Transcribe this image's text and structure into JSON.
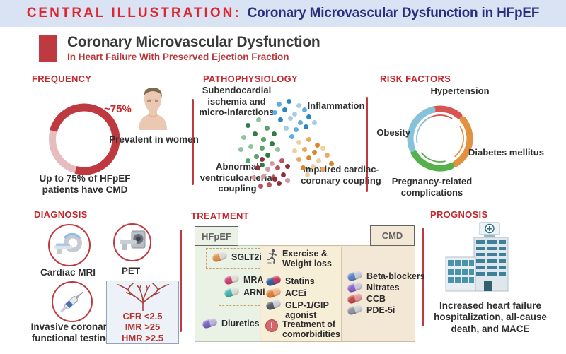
{
  "header": {
    "prefix": "CENTRAL ILLUSTRATION:",
    "title": "Coronary Microvascular Dysfunction in HFpEF"
  },
  "title_block": {
    "title": "Coronary Microvascular Dysfunction",
    "subtitle": "In Heart Failure With Preserved Ejection Fraction",
    "accent_color": "#bf3a40"
  },
  "frequency": {
    "heading": "FREQUENCY",
    "donut": {
      "value_percent": 75,
      "label": "~75%",
      "filled_color": "#bf3a40",
      "empty_color": "#e6bcbf"
    },
    "caption": "Up to 75% of HFpEF patients have CMD",
    "person_caption": "Prevalent in women"
  },
  "pathophysiology": {
    "heading": "PATHOPHYSIOLOGY",
    "clusters": [
      {
        "label": "Subendocardial ischemia and micro-infarctions",
        "shades": [
          "#2f7d43",
          "#58a46a",
          "#8fc49c"
        ]
      },
      {
        "label": "Inflammation",
        "shades": [
          "#2e86c1",
          "#5dade2",
          "#a9cce3"
        ]
      },
      {
        "label": "Impaired cardiac-coronary coupling",
        "shades": [
          "#d6882f",
          "#e8ab60",
          "#f0cfa0"
        ]
      },
      {
        "label": "Abnormal ventriculoarterial coupling",
        "shades": [
          "#8e2f3c",
          "#b85560",
          "#d49aa0"
        ]
      }
    ]
  },
  "risk_factors": {
    "heading": "RISK FACTORS",
    "items": [
      {
        "label": "Hypertension",
        "color": "#d95350"
      },
      {
        "label": "Diabetes mellitus",
        "color": "#e2913f"
      },
      {
        "label": "Pregnancy-related complications",
        "color": "#56b04c"
      },
      {
        "label": "Obesity",
        "color": "#85c3da"
      }
    ]
  },
  "diagnosis": {
    "heading": "DIAGNOSIS",
    "modalities": [
      {
        "label": "Cardiac MRI"
      },
      {
        "label": "PET"
      },
      {
        "label": "Invasive coronary functional testing"
      }
    ],
    "thresholds": [
      "CFR <2.5",
      "IMR >25",
      "HMR >2.5"
    ]
  },
  "treatment": {
    "heading": "TREATMENT",
    "hfpef_tab": "HFpEF",
    "cmd_tab": "CMD",
    "hfpef_items": [
      {
        "label": "SGLT2i",
        "icon": "capsule",
        "colors": [
          "#e0924e",
          "#dcd8d2"
        ]
      },
      {
        "label": "MRA",
        "icon": "capsule",
        "colors": [
          "#cf4472",
          "#dedad4"
        ]
      },
      {
        "label": "ARNi",
        "icon": "capsule",
        "colors": [
          "#45b8ad",
          "#dedad4"
        ]
      },
      {
        "label": "Diuretics",
        "icon": "capsule",
        "colors": [
          "#7a6bc0",
          "#bcb1e0"
        ]
      }
    ],
    "shared_items": [
      {
        "label": "Exercise & Weight loss",
        "icon": "runner"
      },
      {
        "label": "Statins",
        "icon": "capsule",
        "colors": [
          "#31609e",
          "#c23a62"
        ]
      },
      {
        "label": "ACEi",
        "icon": "capsule",
        "colors": [
          "#e0813f",
          "#efb486"
        ]
      },
      {
        "label": "GLP-1/GIP agonist",
        "icon": "capsule",
        "colors": [
          "#5a5e66",
          "#c9cdd2"
        ]
      },
      {
        "label": "Treatment of comorbidities",
        "icon": "alert",
        "colors": [
          "#d2676c"
        ]
      }
    ],
    "cmd_items": [
      {
        "label": "Beta-blockers",
        "icon": "capsule",
        "colors": [
          "#5d83c4",
          "#c7cdd6"
        ]
      },
      {
        "label": "Nitrates",
        "icon": "capsule",
        "colors": [
          "#8a66c9",
          "#ccc6da"
        ]
      },
      {
        "label": "CCB",
        "icon": "capsule",
        "colors": [
          "#c64a4a",
          "#e09a9a"
        ]
      },
      {
        "label": "PDE-5i",
        "icon": "capsule",
        "colors": [
          "#8e959e",
          "#ccd1d6"
        ]
      }
    ]
  },
  "prognosis": {
    "heading": "PROGNOSIS",
    "caption": "Increased heart failure hospitalization, all-cause death, and MACE"
  }
}
